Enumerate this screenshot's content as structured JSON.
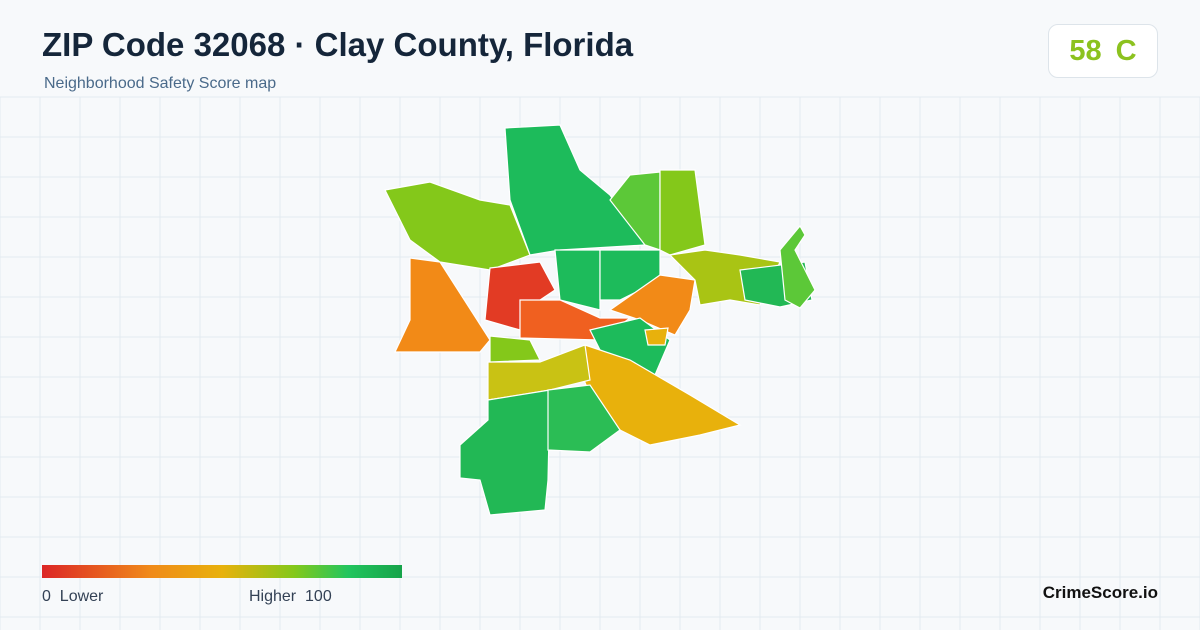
{
  "header": {
    "title": "ZIP Code 32068 · Clay County, Florida",
    "subtitle": "Neighborhood Safety Score map",
    "score": 58,
    "grade": "C"
  },
  "legend": {
    "min": 0,
    "min_label": "Lower",
    "max_label": "Higher",
    "max": 100
  },
  "footer": {
    "brand": "CrimeScore.io"
  }
}
